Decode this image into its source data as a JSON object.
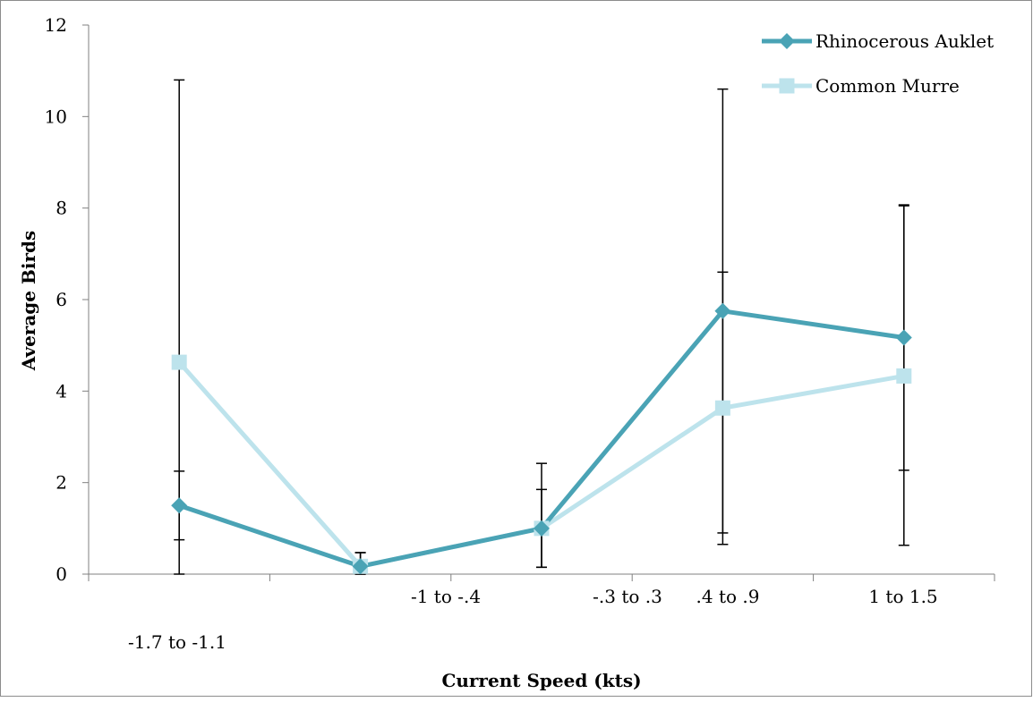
{
  "chart_data": {
    "type": "line",
    "title": "",
    "xlabel": "Current Speed (kts)",
    "ylabel": "Average Birds",
    "ylim": [
      0,
      12
    ],
    "yticks": [
      0,
      2,
      4,
      6,
      8,
      10,
      12
    ],
    "categories": [
      "-1.7 to -1.1",
      "-1 to -.4",
      "-.3 to .3",
      ".4 to .9",
      "1 to 1.5"
    ],
    "legend_position": "top-right",
    "grid": false,
    "series": [
      {
        "name": "Rhinocerous Auklet",
        "color": "#4aa3b5",
        "marker": "diamond",
        "values": [
          1.5,
          0.17,
          1.0,
          5.75,
          5.17
        ],
        "error_low": [
          0.75,
          0.17,
          0.85,
          4.85,
          2.9
        ],
        "error_high": [
          0.75,
          0.3,
          0.85,
          0.85,
          2.9
        ]
      },
      {
        "name": "Common Murre",
        "color": "#bde3ec",
        "marker": "square",
        "values": [
          4.63,
          0.17,
          1.0,
          3.63,
          4.33
        ],
        "error_low": [
          4.63,
          0.17,
          0.85,
          2.98,
          3.7
        ],
        "error_high": [
          6.17,
          0.3,
          1.42,
          6.97,
          3.72
        ]
      }
    ]
  }
}
